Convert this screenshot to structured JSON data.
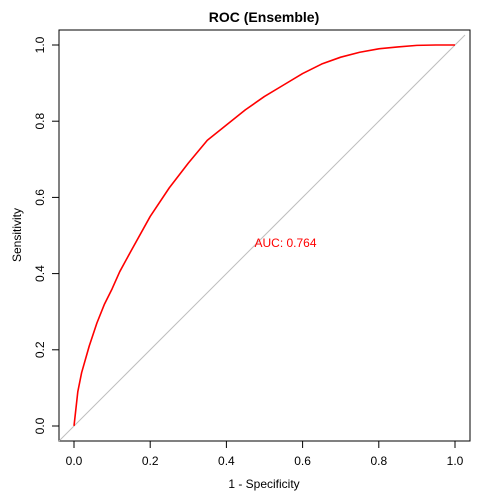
{
  "chart_data": {
    "type": "line",
    "title": "ROC (Ensemble)",
    "xlabel": "1 - Specificity",
    "ylabel": "Sensitivity",
    "xlim": [
      0,
      1
    ],
    "ylim": [
      0,
      1
    ],
    "xticks": [
      "0.0",
      "0.2",
      "0.4",
      "0.6",
      "0.8",
      "1.0"
    ],
    "yticks": [
      "0.0",
      "0.2",
      "0.4",
      "0.6",
      "0.8",
      "1.0"
    ],
    "grid": false,
    "series": [
      {
        "color": "#ff0000",
        "x": [
          0.0,
          0.01,
          0.02,
          0.04,
          0.06,
          0.08,
          0.1,
          0.12,
          0.15,
          0.2,
          0.25,
          0.3,
          0.35,
          0.4,
          0.45,
          0.5,
          0.55,
          0.6,
          0.65,
          0.7,
          0.75,
          0.8,
          0.85,
          0.9,
          0.95,
          1.0
        ],
        "y": [
          0.0,
          0.09,
          0.14,
          0.21,
          0.27,
          0.32,
          0.36,
          0.405,
          0.46,
          0.55,
          0.625,
          0.69,
          0.75,
          0.79,
          0.83,
          0.865,
          0.895,
          0.925,
          0.95,
          0.968,
          0.981,
          0.99,
          0.995,
          0.999,
          1.0,
          1.0
        ]
      }
    ],
    "reference_line": {
      "x": [
        0,
        1
      ],
      "y": [
        0,
        1
      ],
      "color": "#bebebe"
    },
    "annotation": {
      "text": "AUC: 0.764",
      "x": 0.5,
      "y": 0.48,
      "color": "#ff0000"
    }
  }
}
